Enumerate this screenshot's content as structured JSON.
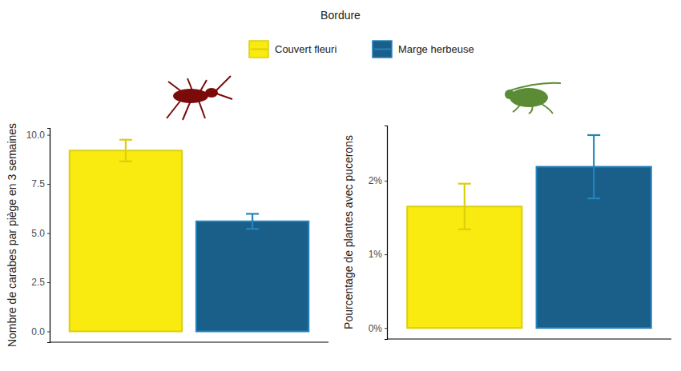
{
  "chart_data": [
    {
      "type": "bar",
      "legend_title": "Bordure",
      "legend": "top",
      "y_label": "Nombre de carabes par piège en 3 semaines",
      "categories": [
        "Couvert fleuri",
        "Marge herbeuse"
      ],
      "values": [
        9.2,
        5.6
      ],
      "errors": [
        0.55,
        0.38
      ],
      "colors": [
        "#f9ea0f",
        "#1a5f8a"
      ],
      "ylim": [
        -0.55,
        10.35
      ],
      "yticks": [
        {
          "value": 0,
          "label": "0.0"
        },
        2.5,
        {
          "value": 5,
          "label": "5.0"
        },
        7.5,
        {
          "value": 10,
          "label": "10.0"
        }
      ],
      "tick_labels": "y",
      "grid": false
    },
    {
      "type": "bar",
      "y_label": "Pourcentage de plantes avec pucerons",
      "categories": [
        "Couvert fleuri",
        "Marge herbeuse"
      ],
      "values": [
        1.65,
        2.19
      ],
      "errors": [
        0.31,
        0.43
      ],
      "colors": [
        "#f9ea0f",
        "#1a5f8a"
      ],
      "ylim": [
        -0.15,
        2.75
      ],
      "yticks": [
        {
          "value": 0,
          "label": "0%"
        },
        {
          "value": 1,
          "label": "1%"
        },
        {
          "value": 2,
          "label": "2%"
        }
      ],
      "tick_labels": "y",
      "grid": false
    }
  ]
}
